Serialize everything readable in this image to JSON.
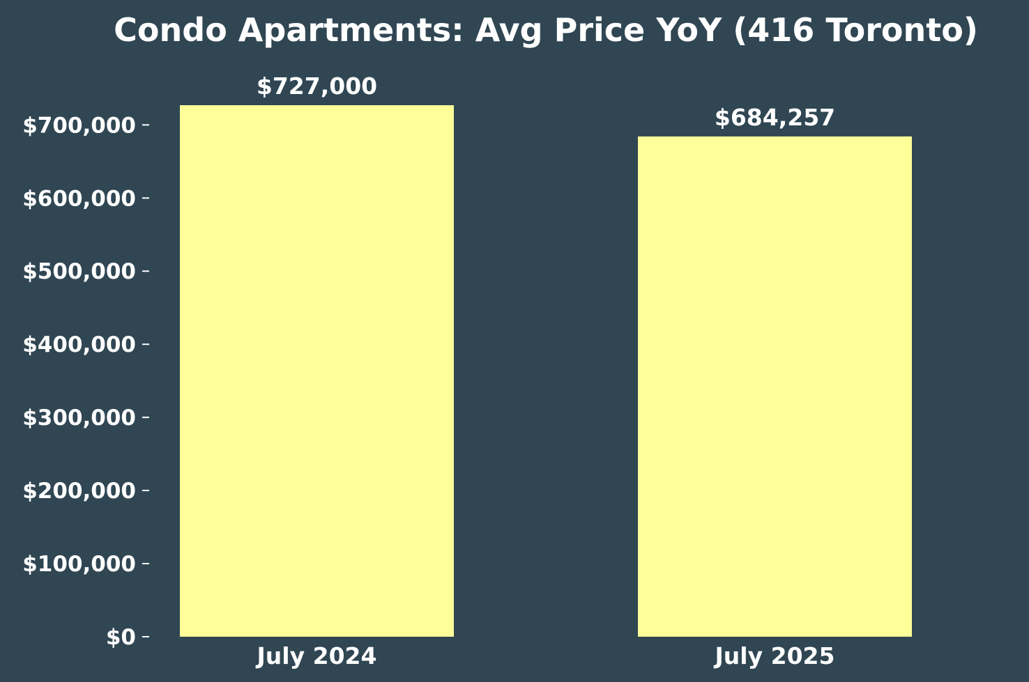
{
  "chart_data": {
    "type": "bar",
    "title": "Condo Apartments: Avg Price YoY (416 Toronto)",
    "xlabel": "",
    "ylabel": "",
    "categories": [
      "July 2024",
      "July 2025"
    ],
    "values": [
      727000,
      684257
    ],
    "value_labels": [
      "$727,000",
      "$684,257"
    ],
    "ylim": [
      0,
      727000
    ],
    "yticks": [
      0,
      100000,
      200000,
      300000,
      400000,
      500000,
      600000,
      700000
    ],
    "ytick_labels": [
      "$0",
      "$100,000",
      "$200,000",
      "$300,000",
      "$400,000",
      "$500,000",
      "$600,000",
      "$700,000"
    ],
    "grid": false,
    "legend": "none",
    "colors": {
      "background": "#304653",
      "bar": "#FFFF99",
      "text": "#FFFFFF"
    }
  }
}
